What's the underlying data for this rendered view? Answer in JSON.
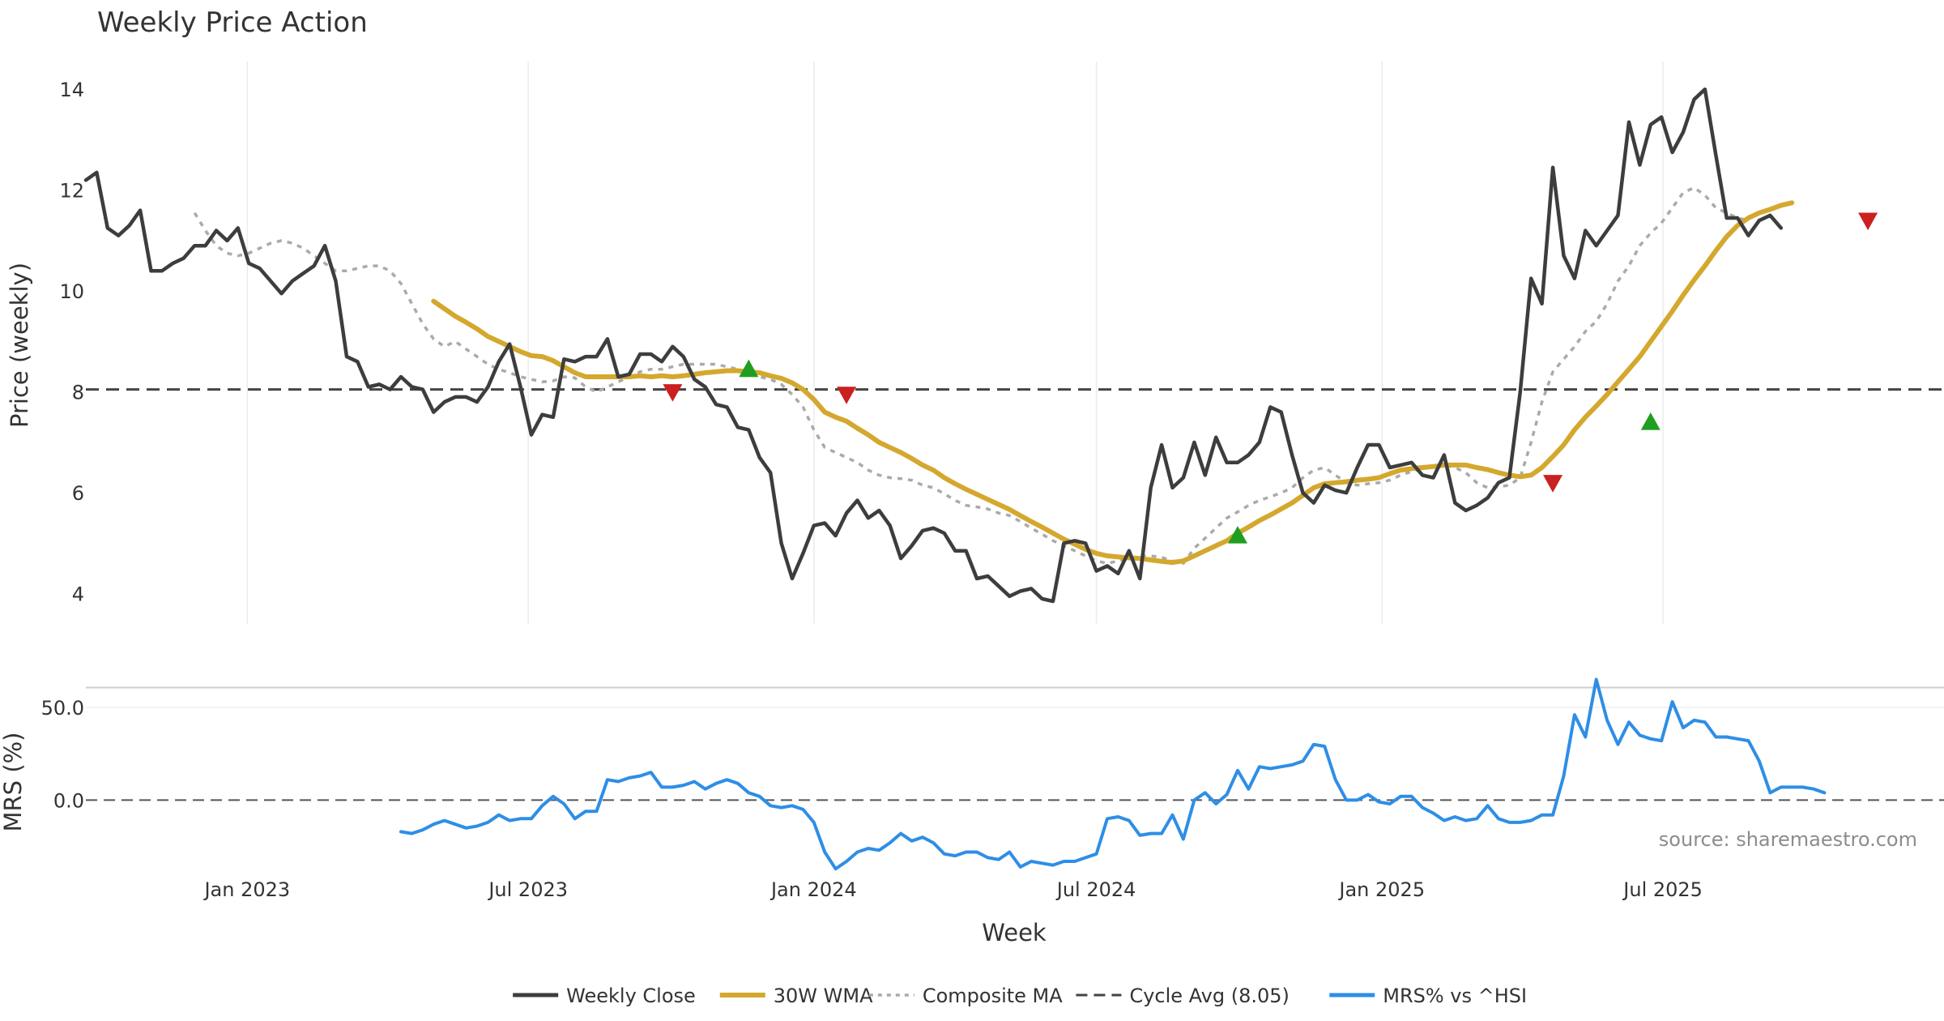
{
  "chart_data": {
    "type": "line",
    "title": "Weekly Price Action",
    "xlabel": "Week",
    "source": "source: sharemaestro.com",
    "x_ticks": [
      "Jan 2023",
      "Jul 2023",
      "Jan 2024",
      "Jul 2024",
      "Jan 2025",
      "Jul 2025"
    ],
    "x_range": [
      "2022-09-19",
      "2025-12-29"
    ],
    "price_panel": {
      "ylabel": "Price (weekly)",
      "ylim": [
        3.4,
        14.55
      ],
      "yticks": [
        "4",
        "6",
        "8",
        "10",
        "12",
        "14"
      ],
      "grid": "vertical",
      "cycle_avg": 8.05
    },
    "mrs_panel": {
      "ylabel": "MRS (%)",
      "ylim": [
        -33,
        60
      ],
      "yticks": [
        "0.0",
        "50.0"
      ],
      "zero_line": true
    },
    "series": [
      {
        "name": "Weekly Close",
        "color": "#3d3d3d",
        "start": "2022-09-19",
        "values": [
          12.2,
          12.35,
          11.25,
          11.1,
          11.3,
          11.6,
          10.4,
          10.4,
          10.55,
          10.65,
          10.9,
          10.9,
          11.2,
          11.0,
          11.25,
          10.55,
          10.45,
          10.2,
          9.95,
          10.2,
          10.35,
          10.5,
          10.9,
          10.2,
          8.7,
          8.6,
          8.1,
          8.15,
          8.05,
          8.3,
          8.1,
          8.05,
          7.6,
          7.8,
          7.9,
          7.9,
          7.8,
          8.1,
          8.6,
          8.95,
          8.1,
          7.15,
          7.55,
          7.5,
          8.65,
          8.6,
          8.7,
          8.7,
          9.05,
          8.3,
          8.35,
          8.75,
          8.75,
          8.6,
          8.9,
          8.7,
          8.25,
          8.1,
          7.75,
          7.7,
          7.3,
          7.25,
          6.7,
          6.4,
          5.0,
          4.3,
          4.8,
          5.35,
          5.4,
          5.15,
          5.6,
          5.85,
          5.5,
          5.65,
          5.35,
          4.7,
          4.95,
          5.25,
          5.3,
          5.2,
          4.85,
          4.85,
          4.3,
          4.35,
          4.15,
          3.95,
          4.05,
          4.1,
          3.9,
          3.85,
          5.0,
          5.05,
          5.0,
          4.45,
          4.55,
          4.4,
          4.85,
          4.3,
          6.1,
          6.95,
          6.1,
          6.3,
          7.0,
          6.35,
          7.1,
          6.6,
          6.6,
          6.75,
          7.0,
          7.7,
          7.6,
          6.75,
          6.0,
          5.8,
          6.15,
          6.05,
          6.0,
          6.5,
          6.95,
          6.95,
          6.5,
          6.55,
          6.6,
          6.35,
          6.3,
          6.75,
          5.8,
          5.65,
          5.75,
          5.9,
          6.2,
          6.3,
          8.0,
          10.25,
          9.75,
          12.45,
          10.7,
          10.25,
          11.2,
          10.9,
          11.2,
          11.5,
          13.35,
          12.5,
          13.3,
          13.45,
          12.75,
          13.15,
          13.8,
          14.0,
          12.7,
          11.45,
          11.45,
          11.1,
          11.4,
          11.5,
          11.25
        ]
      },
      {
        "name": "30W WMA",
        "color": "#d4a82e",
        "start": "2023-05-01",
        "values": [
          9.8,
          9.65,
          9.5,
          9.38,
          9.25,
          9.1,
          9.0,
          8.9,
          8.8,
          8.72,
          8.7,
          8.62,
          8.5,
          8.38,
          8.3,
          8.3,
          8.3,
          8.3,
          8.3,
          8.32,
          8.3,
          8.32,
          8.3,
          8.32,
          8.35,
          8.38,
          8.4,
          8.42,
          8.42,
          8.4,
          8.38,
          8.32,
          8.27,
          8.18,
          8.05,
          7.85,
          7.6,
          7.5,
          7.42,
          7.28,
          7.15,
          7.0,
          6.9,
          6.8,
          6.68,
          6.55,
          6.45,
          6.3,
          6.18,
          6.07,
          5.97,
          5.87,
          5.77,
          5.67,
          5.55,
          5.43,
          5.32,
          5.2,
          5.08,
          4.98,
          4.88,
          4.8,
          4.75,
          4.73,
          4.71,
          4.7,
          4.67,
          4.64,
          4.62,
          4.65,
          4.75,
          4.85,
          4.95,
          5.05,
          5.2,
          5.32,
          5.45,
          5.56,
          5.68,
          5.8,
          5.95,
          6.1,
          6.18,
          6.2,
          6.22,
          6.25,
          6.27,
          6.3,
          6.38,
          6.45,
          6.48,
          6.5,
          6.52,
          6.55,
          6.55,
          6.55,
          6.5,
          6.46,
          6.4,
          6.35,
          6.32,
          6.35,
          6.5,
          6.72,
          6.95,
          7.25,
          7.5,
          7.72,
          7.95,
          8.2,
          8.45,
          8.7,
          9.0,
          9.3,
          9.6,
          9.92,
          10.22,
          10.5,
          10.8,
          11.08,
          11.3,
          11.45,
          11.55,
          11.62,
          11.7,
          11.75
        ]
      },
      {
        "name": "Composite MA",
        "color": "#aaaaaa",
        "start": "2022-11-28",
        "values": [
          11.55,
          11.2,
          10.9,
          10.75,
          10.7,
          10.75,
          10.85,
          10.95,
          11.0,
          10.95,
          10.85,
          10.7,
          10.55,
          10.4,
          10.4,
          10.45,
          10.5,
          10.5,
          10.4,
          10.15,
          9.75,
          9.35,
          9.05,
          8.9,
          9.0,
          8.85,
          8.7,
          8.55,
          8.45,
          8.38,
          8.3,
          8.25,
          8.2,
          8.22,
          8.3,
          8.28,
          8.1,
          8.0,
          8.1,
          8.2,
          8.3,
          8.4,
          8.45,
          8.45,
          8.5,
          8.55,
          8.55,
          8.55,
          8.55,
          8.5,
          8.45,
          8.35,
          8.3,
          8.25,
          8.15,
          7.95,
          7.7,
          7.25,
          6.9,
          6.8,
          6.7,
          6.6,
          6.45,
          6.35,
          6.3,
          6.28,
          6.25,
          6.15,
          6.1,
          5.98,
          5.85,
          5.75,
          5.72,
          5.68,
          5.6,
          5.55,
          5.43,
          5.3,
          5.18,
          5.05,
          4.95,
          4.85,
          4.75,
          4.65,
          4.6,
          4.65,
          4.7,
          4.75,
          4.75,
          4.72,
          4.65,
          4.6,
          4.9,
          5.1,
          5.3,
          5.5,
          5.62,
          5.75,
          5.85,
          5.92,
          6.0,
          6.1,
          6.3,
          6.45,
          6.5,
          6.35,
          6.2,
          6.15,
          6.18,
          6.2,
          6.25,
          6.35,
          6.42,
          6.48,
          6.52,
          6.55,
          6.5,
          6.4,
          6.2,
          6.1,
          6.12,
          6.15,
          6.3,
          7.0,
          7.8,
          8.4,
          8.65,
          8.9,
          9.2,
          9.4,
          9.75,
          10.2,
          10.5,
          10.9,
          11.15,
          11.35,
          11.65,
          11.95,
          12.05,
          11.9,
          11.65,
          11.55,
          11.45,
          11.4
        ]
      },
      {
        "name": "Cycle Avg (8.05)",
        "color": "#444444",
        "value": 8.05
      },
      {
        "name": "MRS% vs ^HSI",
        "color": "#2e8ee6",
        "start": "2023-04-10",
        "values": [
          -17,
          -18,
          -16,
          -13,
          -11,
          -13,
          -15,
          -14,
          -12,
          -8,
          -11,
          -10,
          -10,
          -3,
          2,
          -2,
          -10,
          -6,
          -6,
          11,
          10,
          12,
          13,
          15,
          7,
          7,
          8,
          10,
          6,
          9,
          11,
          9,
          4,
          2,
          -3,
          -4,
          -3,
          -5,
          -12,
          -28,
          -37,
          -33,
          -28,
          -26,
          -27,
          -23,
          -18,
          -22,
          -20,
          -23,
          -29,
          -30,
          -28,
          -28,
          -31,
          -32,
          -28,
          -36,
          -33,
          -34,
          -35,
          -33,
          -33,
          -31,
          -29,
          -10,
          -9,
          -11,
          -19,
          -18,
          -18,
          -8,
          -21,
          0,
          4,
          -2,
          3,
          16,
          6,
          18,
          17,
          18,
          19,
          21,
          30,
          29,
          11,
          0,
          0,
          3,
          -1,
          -2,
          2,
          2,
          -4,
          -7,
          -11,
          -9,
          -11,
          -10,
          -3,
          -10,
          -12,
          -12,
          -11,
          -8,
          -8,
          13,
          46,
          34,
          65,
          43,
          30,
          42,
          35,
          33,
          32,
          53,
          39,
          43,
          42,
          34,
          34,
          33,
          32,
          21,
          4,
          7,
          7,
          7,
          6,
          4
        ]
      }
    ],
    "signals": [
      {
        "type": "sell",
        "date": "2023-10-02",
        "value": 8.0,
        "color": "#cc1f1f"
      },
      {
        "type": "buy",
        "date": "2023-11-20",
        "value": 8.45,
        "color": "#1f9e1f"
      },
      {
        "type": "sell",
        "date": "2024-01-22",
        "value": 7.95,
        "color": "#cc1f1f"
      },
      {
        "type": "buy",
        "date": "2024-09-30",
        "value": 5.15,
        "color": "#1f9e1f"
      },
      {
        "type": "sell",
        "date": "2025-04-21",
        "value": 6.2,
        "color": "#cc1f1f"
      },
      {
        "type": "buy",
        "date": "2025-06-23",
        "value": 7.4,
        "color": "#1f9e1f"
      },
      {
        "type": "sell",
        "date": "2025-11-10",
        "value": 11.4,
        "color": "#cc1f1f"
      }
    ]
  }
}
